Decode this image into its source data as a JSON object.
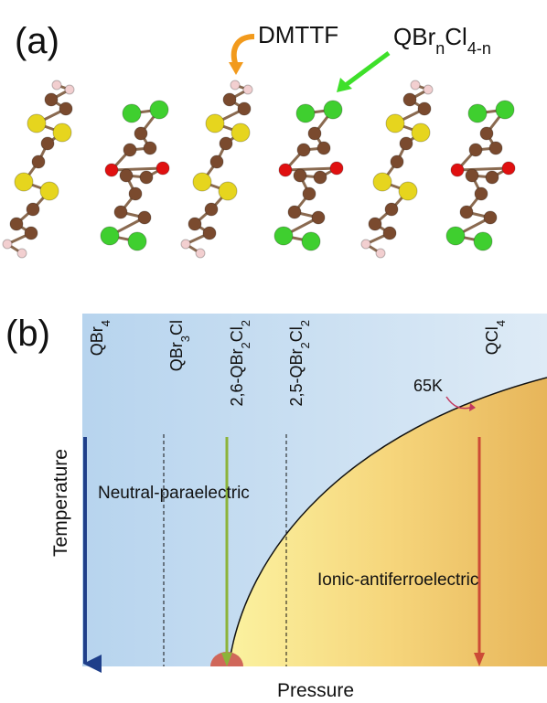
{
  "panel_a": {
    "label": "(a)",
    "dmttf": "DMTTF",
    "acceptor": [
      "QBr",
      "n",
      "Cl",
      "4-n"
    ]
  },
  "panel_b": {
    "label": "(b)",
    "compounds": [
      [
        "QBr",
        "4"
      ],
      [
        "QBr",
        "3",
        "Cl"
      ],
      [
        "2,6-QBr",
        "2",
        "Cl",
        "2"
      ],
      [
        "2,5-QBr",
        "2",
        "Cl",
        "2"
      ],
      [
        "QCl",
        "4"
      ]
    ],
    "temperature_label": "65K",
    "neutral_phase": "Neutral-paraelectric",
    "ionic_phase": "Ionic-antiferroelectric",
    "y_axis": "Temperature",
    "x_axis": "Pressure"
  }
}
